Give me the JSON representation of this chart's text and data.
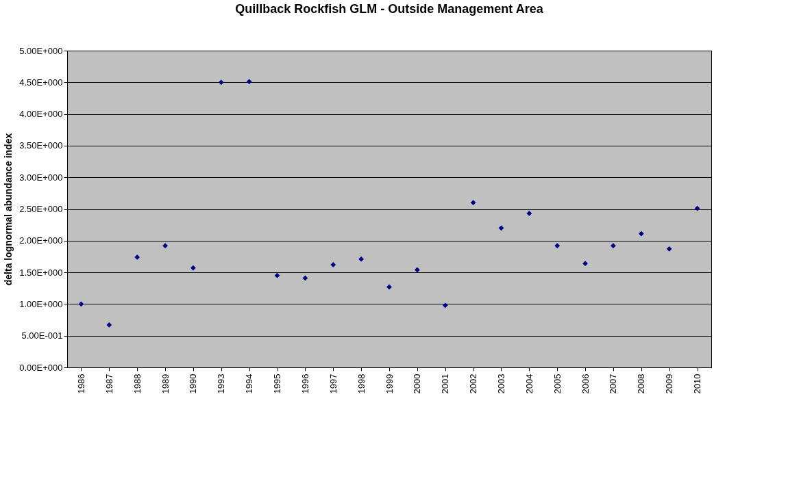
{
  "chart_data": {
    "type": "scatter",
    "title": "Quillback Rockfish GLM - Outside Management Area",
    "ylabel": "delta lognormal abundance index",
    "categories": [
      "1986",
      "1987",
      "1988",
      "1989",
      "1990",
      "1993",
      "1994",
      "1995",
      "1996",
      "1997",
      "1998",
      "1999",
      "2000",
      "2001",
      "2002",
      "2003",
      "2004",
      "2005",
      "2006",
      "2007",
      "2008",
      "2009",
      "2010"
    ],
    "series": [
      {
        "color": "#000080",
        "values": [
          1.0,
          0.67,
          1.74,
          1.92,
          1.57,
          4.5,
          4.51,
          1.45,
          1.41,
          1.62,
          1.71,
          1.27,
          1.54,
          0.98,
          2.6,
          2.2,
          2.43,
          1.92,
          1.64,
          1.92,
          2.11,
          1.87,
          2.51
        ]
      }
    ],
    "ylim": [
      0,
      5
    ],
    "yticks": [
      {
        "value": 0,
        "label": "0.00E+000"
      },
      {
        "value": 0.5,
        "label": "5.00E-001"
      },
      {
        "value": 1,
        "label": "1.00E+000"
      },
      {
        "value": 1.5,
        "label": "1.50E+000"
      },
      {
        "value": 2,
        "label": "2.00E+000"
      },
      {
        "value": 2.5,
        "label": "2.50E+000"
      },
      {
        "value": 3,
        "label": "3.00E+000"
      },
      {
        "value": 3.5,
        "label": "3.50E+000"
      },
      {
        "value": 4,
        "label": "4.00E+000"
      },
      {
        "value": 4.5,
        "label": "4.50E+000"
      },
      {
        "value": 5,
        "label": "5.00E+000"
      }
    ],
    "grid": "y",
    "marker": "diamond"
  }
}
